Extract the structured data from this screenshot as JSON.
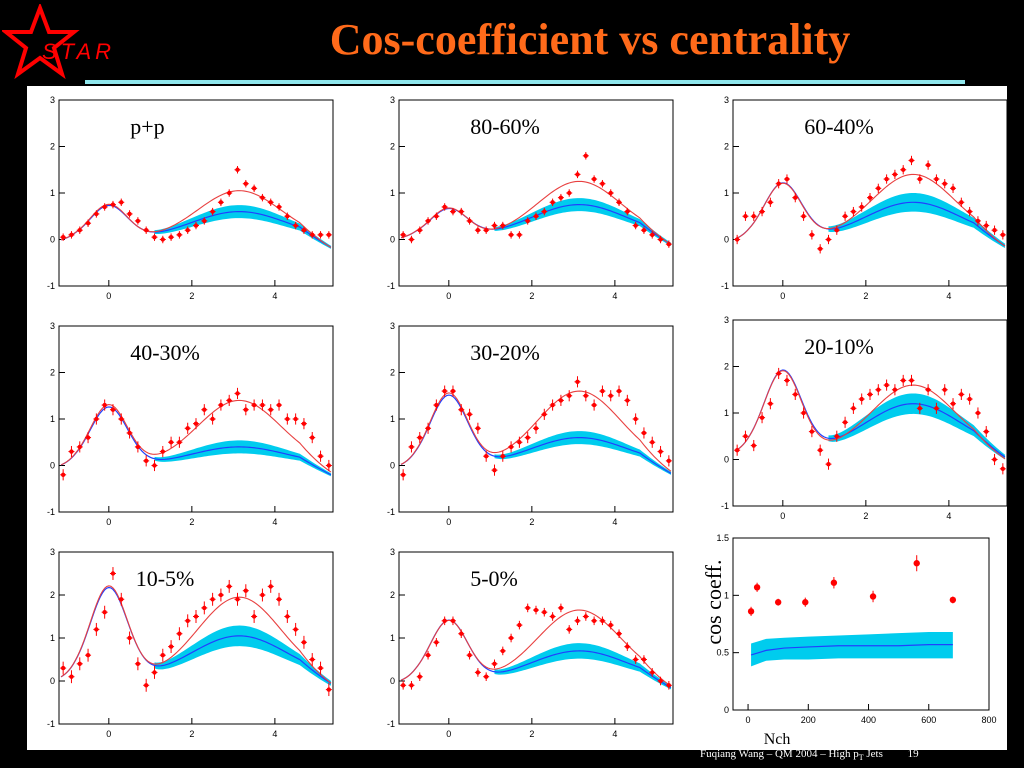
{
  "slide": {
    "title": "Cos-coefficient vs centrality",
    "logo_text": "STAR",
    "footer": "Fuqiang Wang – QM 2004 – High p",
    "footer_sub": "T",
    "footer_tail": " Jets",
    "page_number": "19"
  },
  "colors": {
    "background": "#000000",
    "title": "#ff6a1a",
    "title_rule": "#8fe6ec",
    "data_marker": "#ff0000",
    "fit_line": "#e84040",
    "background_band": "#00ccee",
    "background_line": "#2040ff"
  },
  "chart_data": [
    {
      "type": "scatter",
      "label": "p+p",
      "xlim": [
        -1.2,
        5.4
      ],
      "ylim": [
        -1,
        3
      ],
      "xticks": [
        0,
        2,
        4
      ],
      "yticks": [
        -1,
        0,
        1,
        2,
        3
      ],
      "band": {
        "near": 0.72,
        "away": 0.6,
        "band_width": 0.14,
        "offset": 0.0
      },
      "fit": {
        "near": 0.75,
        "away": 1.05,
        "offset": 0.0
      },
      "points_x": [
        -1.1,
        -0.9,
        -0.7,
        -0.5,
        -0.3,
        -0.1,
        0.1,
        0.3,
        0.5,
        0.7,
        0.9,
        1.1,
        1.3,
        1.5,
        1.7,
        1.9,
        2.1,
        2.3,
        2.5,
        2.7,
        2.9,
        3.1,
        3.3,
        3.5,
        3.7,
        3.9,
        4.1,
        4.3,
        4.5,
        4.7,
        4.9,
        5.1,
        5.3
      ],
      "points_y": [
        0.05,
        0.1,
        0.2,
        0.35,
        0.55,
        0.7,
        0.75,
        0.8,
        0.55,
        0.4,
        0.2,
        0.05,
        0.0,
        0.05,
        0.1,
        0.2,
        0.3,
        0.4,
        0.6,
        0.8,
        1.0,
        1.5,
        1.2,
        1.1,
        0.9,
        0.8,
        0.7,
        0.5,
        0.3,
        0.2,
        0.1,
        0.1,
        0.1
      ],
      "errors": [
        0.08,
        0.08,
        0.08,
        0.08,
        0.08,
        0.08,
        0.08,
        0.08,
        0.08,
        0.08,
        0.08,
        0.08,
        0.08,
        0.08,
        0.08,
        0.08,
        0.08,
        0.08,
        0.08,
        0.08,
        0.08,
        0.08,
        0.08,
        0.08,
        0.08,
        0.08,
        0.08,
        0.08,
        0.08,
        0.08,
        0.08,
        0.08,
        0.08
      ]
    },
    {
      "type": "scatter",
      "label": "80-60%",
      "xlim": [
        -1.2,
        5.4
      ],
      "ylim": [
        -1,
        3
      ],
      "xticks": [
        0,
        2,
        4
      ],
      "yticks": [
        -1,
        0,
        1,
        2,
        3
      ],
      "band": {
        "near": 0.6,
        "away": 0.7,
        "band_width": 0.14,
        "offset": 0.05
      },
      "fit": {
        "near": 0.62,
        "away": 1.2,
        "offset": 0.05
      },
      "points_x": [
        -1.1,
        -0.9,
        -0.7,
        -0.5,
        -0.3,
        -0.1,
        0.1,
        0.3,
        0.5,
        0.7,
        0.9,
        1.1,
        1.3,
        1.5,
        1.7,
        1.9,
        2.1,
        2.3,
        2.5,
        2.7,
        2.9,
        3.1,
        3.3,
        3.5,
        3.7,
        3.9,
        4.1,
        4.3,
        4.5,
        4.7,
        4.9,
        5.1,
        5.3
      ],
      "points_y": [
        0.1,
        0.0,
        0.2,
        0.4,
        0.5,
        0.7,
        0.6,
        0.6,
        0.4,
        0.2,
        0.2,
        0.3,
        0.3,
        0.1,
        0.1,
        0.4,
        0.5,
        0.6,
        0.8,
        0.9,
        1.0,
        1.4,
        1.8,
        1.3,
        1.2,
        1.0,
        0.8,
        0.6,
        0.3,
        0.2,
        0.1,
        0.0,
        -0.1
      ],
      "errors": [
        0.08,
        0.08,
        0.08,
        0.08,
        0.08,
        0.08,
        0.08,
        0.08,
        0.08,
        0.08,
        0.08,
        0.08,
        0.08,
        0.08,
        0.08,
        0.08,
        0.08,
        0.08,
        0.08,
        0.08,
        0.08,
        0.08,
        0.08,
        0.08,
        0.08,
        0.08,
        0.08,
        0.08,
        0.08,
        0.08,
        0.08,
        0.08,
        0.08
      ]
    },
    {
      "type": "scatter",
      "label": "60-40%",
      "xlim": [
        -1.2,
        5.4
      ],
      "ylim": [
        -1,
        3
      ],
      "xticks": [
        0,
        2,
        4
      ],
      "yticks": [
        -1,
        0,
        1,
        2,
        3
      ],
      "band": {
        "near": 1.2,
        "away": 0.8,
        "band_width": 0.2,
        "offset": 0.0
      },
      "fit": {
        "near": 1.2,
        "away": 1.4,
        "offset": 0.0
      },
      "points_x": [
        -1.1,
        -0.9,
        -0.7,
        -0.5,
        -0.3,
        -0.1,
        0.1,
        0.3,
        0.5,
        0.7,
        0.9,
        1.1,
        1.3,
        1.5,
        1.7,
        1.9,
        2.1,
        2.3,
        2.5,
        2.7,
        2.9,
        3.1,
        3.3,
        3.5,
        3.7,
        3.9,
        4.1,
        4.3,
        4.5,
        4.7,
        4.9,
        5.1,
        5.3
      ],
      "points_y": [
        0.0,
        0.5,
        0.5,
        0.6,
        0.8,
        1.2,
        1.3,
        0.9,
        0.5,
        0.1,
        -0.2,
        0.0,
        0.2,
        0.5,
        0.6,
        0.7,
        0.9,
        1.1,
        1.3,
        1.4,
        1.5,
        1.7,
        1.3,
        1.6,
        1.3,
        1.2,
        1.1,
        0.8,
        0.6,
        0.4,
        0.3,
        0.2,
        0.1
      ],
      "errors": [
        0.1,
        0.1,
        0.1,
        0.1,
        0.1,
        0.1,
        0.1,
        0.1,
        0.1,
        0.1,
        0.1,
        0.1,
        0.1,
        0.1,
        0.1,
        0.1,
        0.1,
        0.1,
        0.1,
        0.1,
        0.1,
        0.1,
        0.1,
        0.1,
        0.1,
        0.1,
        0.1,
        0.1,
        0.1,
        0.1,
        0.1,
        0.1,
        0.1
      ]
    },
    {
      "type": "scatter",
      "label": "40-30%",
      "xlim": [
        -1.2,
        5.4
      ],
      "ylim": [
        -1,
        3
      ],
      "xticks": [
        0,
        2,
        4
      ],
      "yticks": [
        -1,
        0,
        1,
        2,
        3
      ],
      "band": {
        "near": 1.25,
        "away": 0.4,
        "band_width": 0.14,
        "offset": 0.0
      },
      "fit": {
        "near": 1.3,
        "away": 1.4,
        "offset": 0.0
      },
      "points_x": [
        -1.1,
        -0.9,
        -0.7,
        -0.5,
        -0.3,
        -0.1,
        0.1,
        0.3,
        0.5,
        0.7,
        0.9,
        1.1,
        1.3,
        1.5,
        1.7,
        1.9,
        2.1,
        2.3,
        2.5,
        2.7,
        2.9,
        3.1,
        3.3,
        3.5,
        3.7,
        3.9,
        4.1,
        4.3,
        4.5,
        4.7,
        4.9,
        5.1,
        5.3
      ],
      "points_y": [
        -0.2,
        0.3,
        0.4,
        0.6,
        1.0,
        1.3,
        1.2,
        1.0,
        0.7,
        0.4,
        0.1,
        0.0,
        0.3,
        0.5,
        0.5,
        0.8,
        0.9,
        1.2,
        1.0,
        1.3,
        1.4,
        1.55,
        1.2,
        1.3,
        1.3,
        1.2,
        1.3,
        1.0,
        1.0,
        0.9,
        0.6,
        0.2,
        0.0
      ],
      "errors": [
        0.12,
        0.12,
        0.12,
        0.12,
        0.12,
        0.12,
        0.12,
        0.12,
        0.12,
        0.12,
        0.12,
        0.12,
        0.12,
        0.12,
        0.12,
        0.12,
        0.12,
        0.12,
        0.12,
        0.12,
        0.12,
        0.12,
        0.12,
        0.12,
        0.12,
        0.12,
        0.12,
        0.12,
        0.12,
        0.12,
        0.12,
        0.12,
        0.12
      ]
    },
    {
      "type": "scatter",
      "label": "30-20%",
      "xlim": [
        -1.2,
        5.4
      ],
      "ylim": [
        -1,
        3
      ],
      "xticks": [
        0,
        2,
        4
      ],
      "yticks": [
        -1,
        0,
        1,
        2,
        3
      ],
      "band": {
        "near": 1.5,
        "away": 0.6,
        "band_width": 0.14,
        "offset": 0.0
      },
      "fit": {
        "near": 1.55,
        "away": 1.6,
        "offset": 0.0
      },
      "points_x": [
        -1.1,
        -0.9,
        -0.7,
        -0.5,
        -0.3,
        -0.1,
        0.1,
        0.3,
        0.5,
        0.7,
        0.9,
        1.1,
        1.3,
        1.5,
        1.7,
        1.9,
        2.1,
        2.3,
        2.5,
        2.7,
        2.9,
        3.1,
        3.3,
        3.5,
        3.7,
        3.9,
        4.1,
        4.3,
        4.5,
        4.7,
        4.9,
        5.1,
        5.3
      ],
      "points_y": [
        -0.2,
        0.4,
        0.6,
        0.8,
        1.3,
        1.6,
        1.6,
        1.2,
        1.1,
        0.8,
        0.2,
        -0.1,
        0.2,
        0.4,
        0.5,
        0.6,
        0.8,
        1.1,
        1.3,
        1.4,
        1.5,
        1.8,
        1.5,
        1.3,
        1.6,
        1.5,
        1.6,
        1.4,
        1.0,
        0.7,
        0.5,
        0.3,
        0.1
      ],
      "errors": [
        0.12,
        0.12,
        0.12,
        0.12,
        0.12,
        0.12,
        0.12,
        0.12,
        0.12,
        0.12,
        0.12,
        0.12,
        0.12,
        0.12,
        0.12,
        0.12,
        0.12,
        0.12,
        0.12,
        0.12,
        0.12,
        0.12,
        0.12,
        0.12,
        0.12,
        0.12,
        0.12,
        0.12,
        0.12,
        0.12,
        0.12,
        0.12,
        0.12
      ]
    },
    {
      "type": "scatter",
      "label": "20-10%",
      "xlim": [
        -1.2,
        5.4
      ],
      "ylim": [
        -1,
        3
      ],
      "xticks": [
        0,
        2,
        4
      ],
      "yticks": [
        -1,
        0,
        1,
        2,
        3
      ],
      "band": {
        "near": 1.75,
        "away": 1.05,
        "band_width": 0.22,
        "offset": 0.15
      },
      "fit": {
        "near": 1.75,
        "away": 1.45,
        "offset": 0.15
      },
      "points_x": [
        -1.1,
        -0.9,
        -0.7,
        -0.5,
        -0.3,
        -0.1,
        0.1,
        0.3,
        0.5,
        0.7,
        0.9,
        1.1,
        1.3,
        1.5,
        1.7,
        1.9,
        2.1,
        2.3,
        2.5,
        2.7,
        2.9,
        3.1,
        3.3,
        3.5,
        3.7,
        3.9,
        4.1,
        4.3,
        4.5,
        4.7,
        4.9,
        5.1,
        5.3
      ],
      "points_y": [
        0.2,
        0.5,
        0.3,
        0.9,
        1.2,
        1.85,
        1.7,
        1.4,
        1.0,
        0.6,
        0.2,
        -0.1,
        0.5,
        0.8,
        1.1,
        1.3,
        1.4,
        1.5,
        1.6,
        1.5,
        1.7,
        1.7,
        1.1,
        1.5,
        1.1,
        1.5,
        1.2,
        1.4,
        1.3,
        1.0,
        0.6,
        0.0,
        -0.2
      ],
      "errors": [
        0.12,
        0.12,
        0.12,
        0.12,
        0.12,
        0.12,
        0.12,
        0.12,
        0.12,
        0.12,
        0.12,
        0.12,
        0.12,
        0.12,
        0.12,
        0.12,
        0.12,
        0.12,
        0.12,
        0.12,
        0.12,
        0.12,
        0.12,
        0.12,
        0.12,
        0.12,
        0.12,
        0.12,
        0.12,
        0.12,
        0.12,
        0.12,
        0.12
      ]
    },
    {
      "type": "scatter",
      "label": "10-5%",
      "xlim": [
        -1.2,
        5.4
      ],
      "ylim": [
        -1,
        3
      ],
      "xticks": [
        0,
        2,
        4
      ],
      "yticks": [
        -1,
        0,
        1,
        2,
        3
      ],
      "band": {
        "near": 2.1,
        "away": 1.0,
        "band_width": 0.24,
        "offset": 0.05
      },
      "fit": {
        "near": 2.15,
        "away": 1.9,
        "offset": 0.05
      },
      "points_x": [
        -1.1,
        -0.9,
        -0.7,
        -0.5,
        -0.3,
        -0.1,
        0.1,
        0.3,
        0.5,
        0.7,
        0.9,
        1.1,
        1.3,
        1.5,
        1.7,
        1.9,
        2.1,
        2.3,
        2.5,
        2.7,
        2.9,
        3.1,
        3.3,
        3.5,
        3.7,
        3.9,
        4.1,
        4.3,
        4.5,
        4.7,
        4.9,
        5.1,
        5.3
      ],
      "points_y": [
        0.3,
        0.1,
        0.4,
        0.6,
        1.2,
        1.6,
        2.5,
        1.9,
        1.0,
        0.4,
        -0.1,
        0.2,
        0.6,
        0.8,
        1.1,
        1.4,
        1.5,
        1.7,
        1.9,
        2.0,
        2.2,
        1.9,
        2.1,
        1.5,
        2.0,
        2.2,
        1.9,
        1.5,
        1.2,
        0.9,
        0.5,
        0.3,
        -0.2
      ],
      "errors": [
        0.15,
        0.15,
        0.15,
        0.15,
        0.15,
        0.15,
        0.15,
        0.15,
        0.15,
        0.15,
        0.15,
        0.15,
        0.15,
        0.15,
        0.15,
        0.15,
        0.15,
        0.15,
        0.15,
        0.15,
        0.15,
        0.15,
        0.15,
        0.15,
        0.15,
        0.15,
        0.15,
        0.15,
        0.15,
        0.15,
        0.15,
        0.15,
        0.15
      ]
    },
    {
      "type": "scatter",
      "label": "5-0%",
      "xlim": [
        -1.2,
        5.4
      ],
      "ylim": [
        -1,
        3
      ],
      "xticks": [
        0,
        2,
        4
      ],
      "yticks": [
        -1,
        0,
        1,
        2,
        3
      ],
      "band": {
        "near": 1.4,
        "away": 0.7,
        "band_width": 0.18,
        "offset": 0.0
      },
      "fit": {
        "near": 1.4,
        "away": 1.65,
        "offset": 0.0
      },
      "points_x": [
        -1.1,
        -0.9,
        -0.7,
        -0.5,
        -0.3,
        -0.1,
        0.1,
        0.3,
        0.5,
        0.7,
        0.9,
        1.1,
        1.3,
        1.5,
        1.7,
        1.9,
        2.1,
        2.3,
        2.5,
        2.7,
        2.9,
        3.1,
        3.3,
        3.5,
        3.7,
        3.9,
        4.1,
        4.3,
        4.5,
        4.7,
        4.9,
        5.1,
        5.3
      ],
      "points_y": [
        -0.1,
        -0.1,
        0.1,
        0.6,
        0.9,
        1.4,
        1.4,
        1.1,
        0.6,
        0.2,
        0.1,
        0.4,
        0.7,
        1.0,
        1.3,
        1.7,
        1.65,
        1.6,
        1.5,
        1.7,
        1.2,
        1.4,
        1.5,
        1.4,
        1.4,
        1.3,
        1.1,
        0.8,
        0.5,
        0.5,
        0.2,
        0.0,
        -0.1
      ],
      "errors": [
        0.1,
        0.1,
        0.1,
        0.1,
        0.1,
        0.1,
        0.1,
        0.1,
        0.1,
        0.1,
        0.1,
        0.1,
        0.1,
        0.1,
        0.1,
        0.1,
        0.1,
        0.1,
        0.1,
        0.1,
        0.1,
        0.1,
        0.1,
        0.1,
        0.1,
        0.1,
        0.1,
        0.1,
        0.1,
        0.1,
        0.1,
        0.1,
        0.1
      ]
    },
    {
      "type": "scatter",
      "xlabel": "Nch",
      "ylabel": "cos coeff.",
      "xlim": [
        -50,
        800
      ],
      "ylim": [
        0,
        1.5
      ],
      "xticks": [
        0,
        200,
        400,
        600,
        800
      ],
      "yticks": [
        0,
        0.5,
        1,
        1.5
      ],
      "x": [
        10,
        30,
        100,
        190,
        285,
        415,
        560,
        680
      ],
      "y": [
        0.86,
        1.07,
        0.94,
        0.94,
        1.11,
        0.99,
        1.28,
        0.96
      ],
      "errors": [
        0.04,
        0.04,
        0.03,
        0.04,
        0.05,
        0.05,
        0.07,
        0.03
      ],
      "band": {
        "x": [
          10,
          60,
          120,
          200,
          300,
          400,
          500,
          600,
          680
        ],
        "low": [
          0.38,
          0.43,
          0.44,
          0.44,
          0.45,
          0.45,
          0.45,
          0.45,
          0.45
        ],
        "high": [
          0.58,
          0.62,
          0.63,
          0.64,
          0.65,
          0.66,
          0.67,
          0.68,
          0.68
        ],
        "center": [
          0.48,
          0.52,
          0.54,
          0.55,
          0.56,
          0.56,
          0.56,
          0.57,
          0.57
        ]
      }
    }
  ]
}
